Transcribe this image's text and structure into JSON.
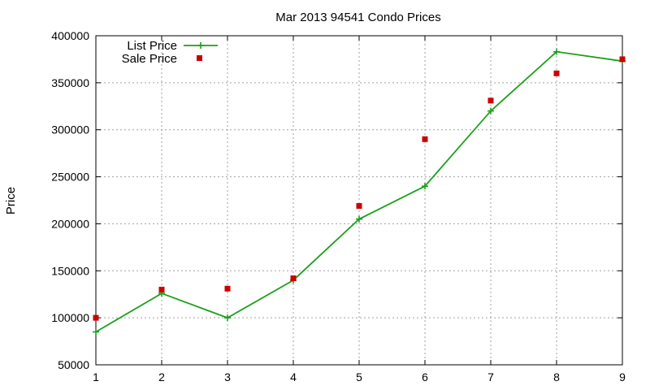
{
  "chart_data": {
    "type": "line",
    "title": "Mar 2013 94541 Condo Prices",
    "xlabel": "",
    "ylabel": "Price",
    "xlim": [
      1,
      9
    ],
    "ylim": [
      50000,
      400000
    ],
    "xticks": [
      1,
      2,
      3,
      4,
      5,
      6,
      7,
      8,
      9
    ],
    "yticks": [
      50000,
      100000,
      150000,
      200000,
      250000,
      300000,
      350000,
      400000
    ],
    "grid": true,
    "legend_position": "top-left",
    "series": [
      {
        "name": "List Price",
        "style": "line-with-plus-markers",
        "color": "#1ba01b",
        "x": [
          1,
          2,
          3,
          4,
          5,
          6,
          7,
          8,
          9
        ],
        "y": [
          85000,
          126000,
          100000,
          140000,
          205000,
          240000,
          320000,
          383000,
          373000
        ]
      },
      {
        "name": "Sale Price",
        "style": "square-markers",
        "color": "#cc0000",
        "x": [
          1,
          2,
          3,
          4,
          5,
          6,
          7,
          8,
          9
        ],
        "y": [
          100000,
          130000,
          131000,
          142000,
          219000,
          290000,
          331000,
          360000,
          375000
        ]
      }
    ]
  }
}
